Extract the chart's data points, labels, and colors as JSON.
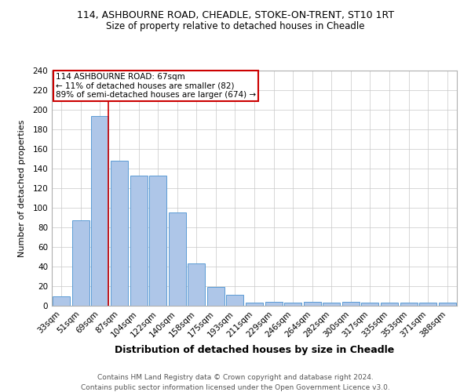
{
  "title1": "114, ASHBOURNE ROAD, CHEADLE, STOKE-ON-TRENT, ST10 1RT",
  "title2": "Size of property relative to detached houses in Cheadle",
  "xlabel": "Distribution of detached houses by size in Cheadle",
  "ylabel": "Number of detached properties",
  "categories": [
    "33sqm",
    "51sqm",
    "69sqm",
    "87sqm",
    "104sqm",
    "122sqm",
    "140sqm",
    "158sqm",
    "175sqm",
    "193sqm",
    "211sqm",
    "229sqm",
    "246sqm",
    "264sqm",
    "282sqm",
    "300sqm",
    "317sqm",
    "335sqm",
    "353sqm",
    "371sqm",
    "388sqm"
  ],
  "values": [
    10,
    87,
    194,
    148,
    133,
    133,
    95,
    43,
    19,
    11,
    3,
    4,
    3,
    4,
    3,
    4,
    3,
    3,
    3,
    3,
    3
  ],
  "bar_color": "#aec6e8",
  "bar_edge_color": "#5b9bd5",
  "highlight_index": 2,
  "highlight_line_color": "#cc0000",
  "annotation_box_color": "#ffffff",
  "annotation_border_color": "#cc0000",
  "annotation_text_line1": "114 ASHBOURNE ROAD: 67sqm",
  "annotation_text_line2": "← 11% of detached houses are smaller (82)",
  "annotation_text_line3": "89% of semi-detached houses are larger (674) →",
  "ylim": [
    0,
    240
  ],
  "yticks": [
    0,
    20,
    40,
    60,
    80,
    100,
    120,
    140,
    160,
    180,
    200,
    220,
    240
  ],
  "footnote1": "Contains HM Land Registry data © Crown copyright and database right 2024.",
  "footnote2": "Contains public sector information licensed under the Open Government Licence v3.0.",
  "title1_fontsize": 9,
  "title2_fontsize": 8.5,
  "xlabel_fontsize": 9,
  "ylabel_fontsize": 8,
  "tick_fontsize": 7.5,
  "annotation_fontsize": 7.5,
  "footnote_fontsize": 6.5
}
